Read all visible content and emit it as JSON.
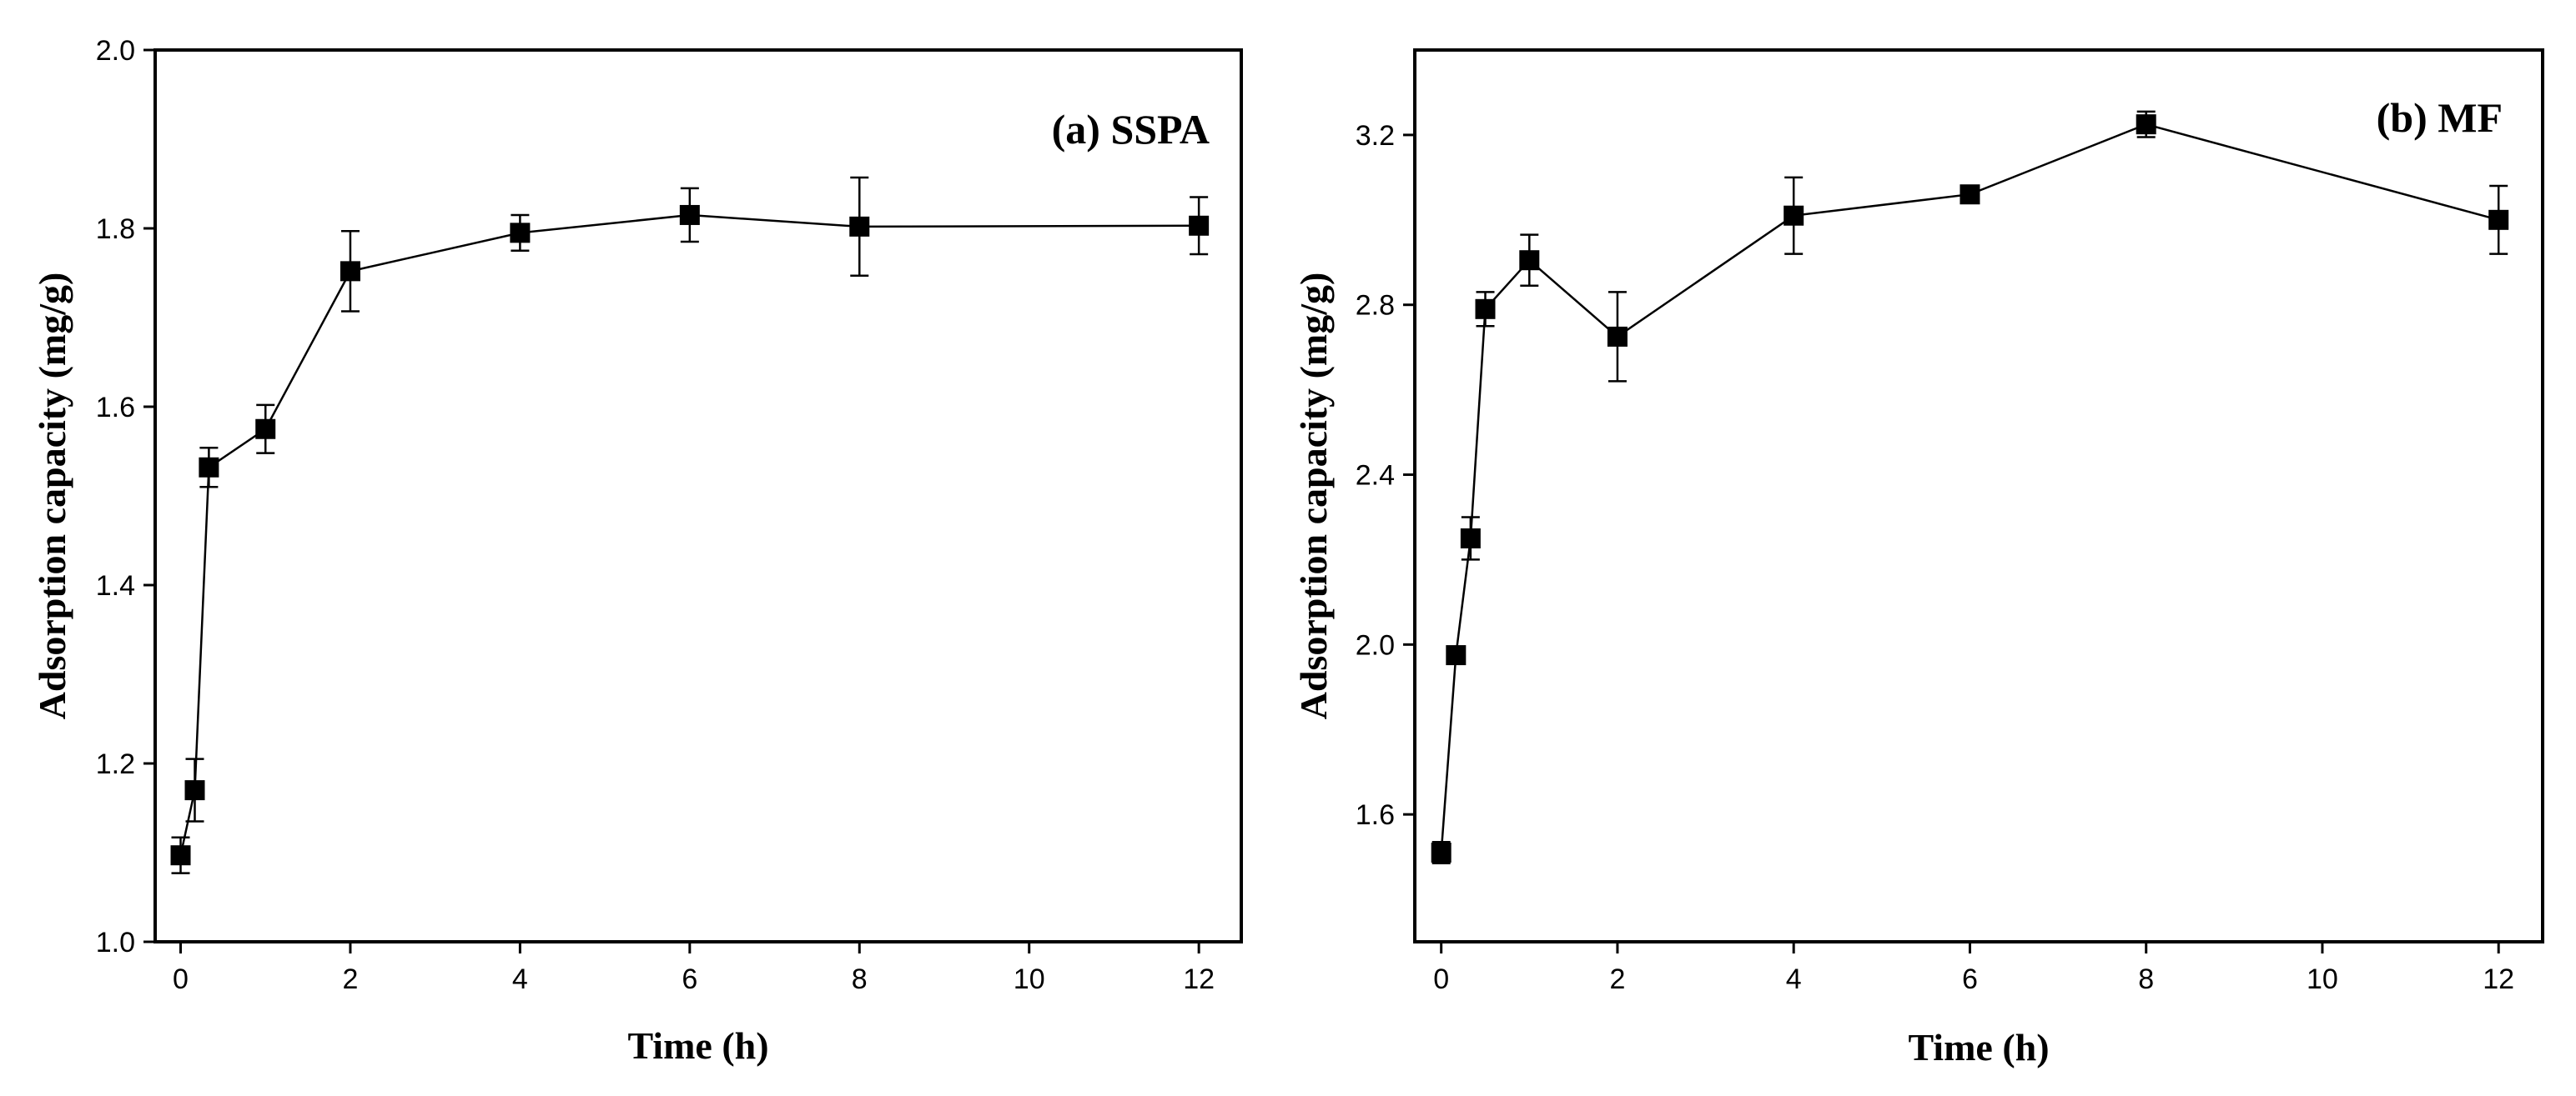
{
  "chart_data": [
    {
      "type": "line",
      "title": "(a) SSPA",
      "xlabel": "Time (h)",
      "ylabel": "Adsorption capacity (mg/g)",
      "xlim": [
        -0.3,
        12.5
      ],
      "ylim": [
        1.0,
        2.0
      ],
      "xticks": [
        0,
        2,
        4,
        6,
        8,
        10,
        12
      ],
      "yticks": [
        1.0,
        1.2,
        1.4,
        1.6,
        1.8,
        2.0
      ],
      "ytick_labels": [
        "1.0",
        "1.2",
        "1.4",
        "1.6",
        "1.8",
        "2.0"
      ],
      "marker": "square",
      "series": [
        {
          "name": "SSPA",
          "x": [
            0,
            0.167,
            0.333,
            1,
            2,
            4,
            6,
            8,
            12
          ],
          "y": [
            1.097,
            1.17,
            1.532,
            1.575,
            1.752,
            1.795,
            1.815,
            1.802,
            1.803
          ],
          "err": [
            0.02,
            0.035,
            0.022,
            0.027,
            0.045,
            0.02,
            0.03,
            0.055,
            0.032
          ]
        }
      ]
    },
    {
      "type": "line",
      "title": "(b) MF",
      "xlabel": "Time (h)",
      "ylabel": "Adsorption capacity (mg/g)",
      "xlim": [
        -0.3,
        12.5
      ],
      "ylim": [
        1.3,
        3.4
      ],
      "xticks": [
        0,
        2,
        4,
        6,
        8,
        10,
        12
      ],
      "yticks": [
        1.6,
        2.0,
        2.4,
        2.8,
        3.2
      ],
      "ytick_labels": [
        "1.6",
        "2.0",
        "2.4",
        "2.8",
        "3.2"
      ],
      "marker": "square",
      "series": [
        {
          "name": "MF",
          "x": [
            0,
            0.167,
            0.333,
            0.5,
            1,
            2,
            4,
            6,
            8,
            12
          ],
          "y": [
            1.51,
            1.975,
            2.25,
            2.79,
            2.905,
            2.725,
            3.01,
            3.06,
            3.225,
            3.0
          ],
          "err": [
            0.025,
            0.0,
            0.05,
            0.04,
            0.06,
            0.105,
            0.09,
            0.0,
            0.03,
            0.08
          ]
        }
      ]
    }
  ]
}
